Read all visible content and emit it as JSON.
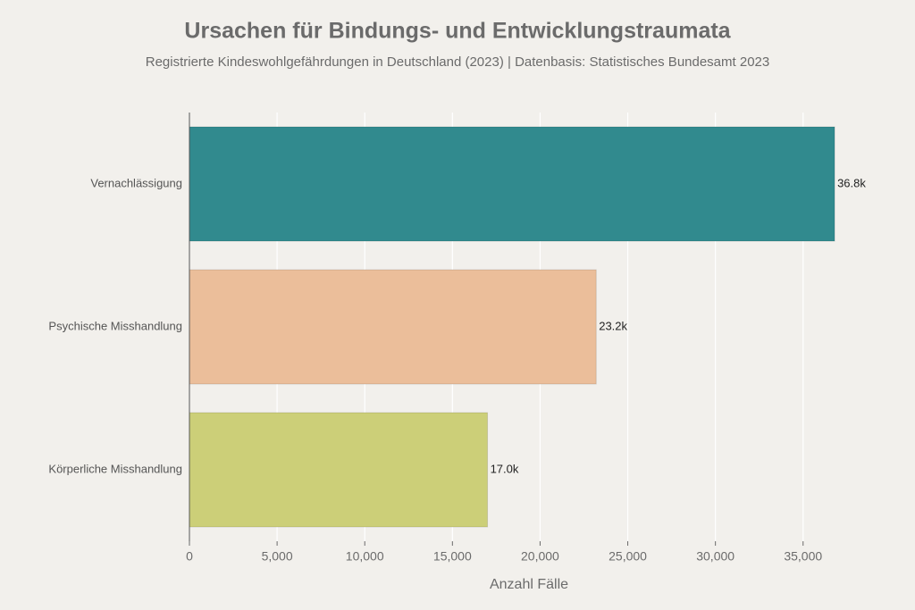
{
  "chart_data": {
    "type": "bar",
    "orientation": "horizontal",
    "title": "Ursachen für Bindungs- und Entwicklungstraumata",
    "subtitle": "Registrierte Kindeswohlgefährdungen in Deutschland (2023) | Datenbasis: Statistisches Bundesamt 2023",
    "x_label": "Anzahl Fälle",
    "categories": [
      "Vernachlässigung",
      "Psychische Misshandlung",
      "Körperliche Misshandlung"
    ],
    "values": [
      36800,
      23200,
      17000
    ],
    "value_labels": [
      "36.8k",
      "23.2k",
      "17.0k"
    ],
    "colors": [
      "#318a8e",
      "#ebbe9a",
      "#cccf78"
    ],
    "xlim": [
      0,
      37000
    ],
    "xticks": [
      0,
      {
        "value": 5000,
        "label": "5,000"
      },
      {
        "value": 10000,
        "label": "10,000"
      },
      {
        "value": 15000,
        "label": "15,000"
      },
      {
        "value": 20000,
        "label": "20,000"
      },
      {
        "value": 25000,
        "label": "25,000"
      },
      {
        "value": 30000,
        "label": "30,000"
      },
      {
        "value": 35000,
        "label": "35,000"
      }
    ],
    "grid": true
  }
}
